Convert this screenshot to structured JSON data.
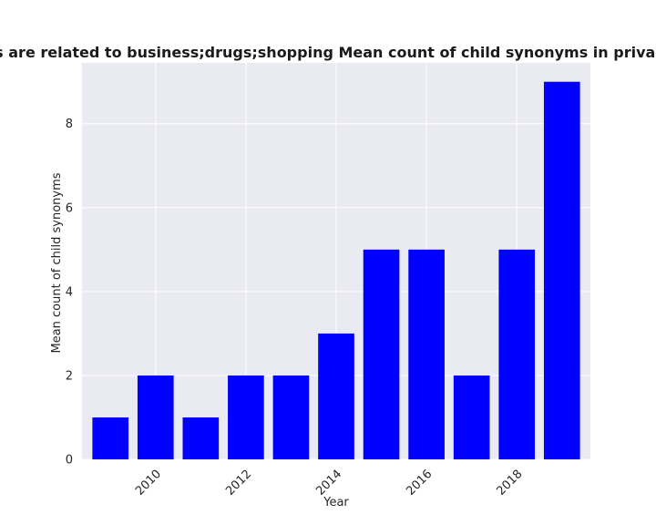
{
  "chart_data": {
    "type": "bar",
    "title": "Categories are related to business;drugs;shopping Mean count of child synonyms in privacy policies",
    "xlabel": "Year",
    "ylabel": "Mean count of child synonyms",
    "x": [
      2009,
      2010,
      2011,
      2012,
      2013,
      2014,
      2015,
      2016,
      2017,
      2018,
      2019
    ],
    "values": [
      1,
      2,
      1,
      2,
      2,
      3,
      5,
      5,
      2,
      5,
      9
    ],
    "xticks": [
      2010,
      2012,
      2014,
      2016,
      2018
    ],
    "yticks": [
      0,
      2,
      4,
      6,
      8
    ],
    "xlim": [
      2008.37,
      2019.63
    ],
    "ylim": [
      0,
      9.45
    ],
    "grid": true,
    "bar_color": "#0000ff",
    "plot_background": "#eaeaf2",
    "grid_color": "#ffffff"
  }
}
